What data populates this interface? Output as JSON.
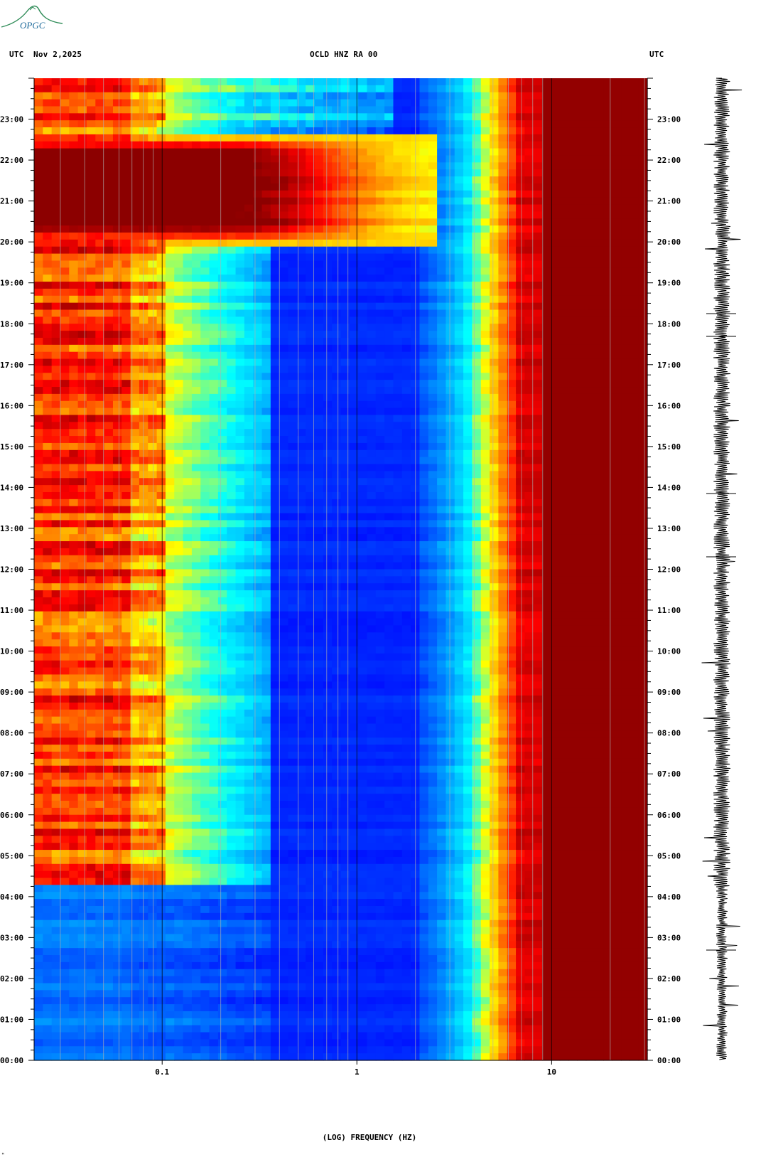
{
  "logo": {
    "text": "OPGC",
    "color": "#2e8b57"
  },
  "header": {
    "left_tz": "UTC",
    "date": "Nov 2,2025",
    "station": "OCLD HNZ RA 00",
    "right_tz": "UTC"
  },
  "chart_data": {
    "type": "heatmap",
    "subtype": "spectrogram",
    "title": "OCLD HNZ RA 00",
    "xlabel": "(LOG) FREQUENCY (HZ)",
    "ylabel": "",
    "x_scale": "log",
    "x_range_hz": [
      0.022,
      31
    ],
    "x_ticks": [
      {
        "value": 0.1,
        "label": "0.1"
      },
      {
        "value": 1,
        "label": "1"
      },
      {
        "value": 10,
        "label": "10"
      }
    ],
    "y_range_hours_utc": [
      0,
      24
    ],
    "y_ticks": [
      "00:00",
      "01:00",
      "02:00",
      "03:00",
      "04:00",
      "05:00",
      "06:00",
      "07:00",
      "08:00",
      "09:00",
      "10:00",
      "11:00",
      "12:00",
      "13:00",
      "14:00",
      "15:00",
      "16:00",
      "17:00",
      "18:00",
      "19:00",
      "20:00",
      "21:00",
      "22:00",
      "23:00"
    ],
    "colormap": [
      "#00008b",
      "#0000ff",
      "#0080ff",
      "#00ffff",
      "#ffff00",
      "#ff8000",
      "#ff0000",
      "#8b0000"
    ],
    "features": [
      {
        "name": "ocean microseism band",
        "freq_hz": [
          0.025,
          0.09
        ],
        "hours": [
          4.25,
          24
        ],
        "level": "high"
      },
      {
        "name": "wind event",
        "freq_hz": [
          0.025,
          0.4
        ],
        "hours": [
          20.0,
          22.5
        ],
        "level": "very high"
      },
      {
        "name": "high-frequency cultural noise",
        "freq_hz": [
          6,
          31
        ],
        "hours": [
          0,
          24
        ],
        "level": "very high"
      }
    ],
    "grid": true
  },
  "seismogram": {
    "color": "#000000",
    "label": ""
  }
}
